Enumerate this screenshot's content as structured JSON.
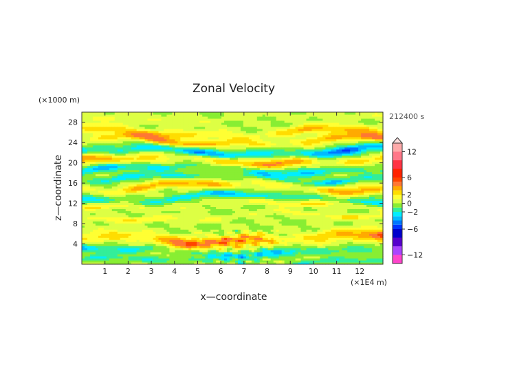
{
  "chart_data": {
    "type": "heatmap",
    "title": "Zonal Velocity",
    "xlabel": "x—coordinate",
    "ylabel": "z—coordinate",
    "x_unit": "(×1E4 m)",
    "y_unit": "(×1000 m)",
    "time_label": "212400 s",
    "x_range": [
      0,
      13
    ],
    "y_range": [
      0,
      30
    ],
    "x_ticks": [
      "1",
      "2",
      "3",
      "4",
      "5",
      "6",
      "7",
      "8",
      "9",
      "10",
      "11",
      "12"
    ],
    "y_ticks": [
      "4",
      "8",
      "12",
      "16",
      "20",
      "24",
      "28"
    ],
    "grid": false,
    "colorbar": {
      "tick_labels": [
        "12",
        "6",
        "2",
        "0",
        "−2",
        "−6",
        "−12"
      ],
      "levels": [
        -14,
        -12,
        -10,
        -8,
        -6,
        -5,
        -4,
        -3,
        -2,
        -1,
        0,
        1,
        2,
        3,
        4,
        5,
        6,
        8,
        10,
        12,
        14
      ],
      "colors": [
        "#ff44cc",
        "#aa44ff",
        "#5500cc",
        "#0000cc",
        "#0033ff",
        "#0077ff",
        "#00bbff",
        "#00eeff",
        "#33ee99",
        "#88ee33",
        "#ddff44",
        "#ffff33",
        "#ffdd00",
        "#ffaa00",
        "#ff7733",
        "#ff4400",
        "#ff2200",
        "#ff3344",
        "#ff7788",
        "#ffaaaa"
      ]
    },
    "bands": [
      {
        "z": 29.0,
        "amp": 0.8,
        "width": 1.0,
        "wave": 0.5
      },
      {
        "z": 26.0,
        "amp": 3.0,
        "width": 0.9,
        "wave": 1.0
      },
      {
        "z": 24.3,
        "amp": 3.5,
        "width": 0.8,
        "wave": 1.0
      },
      {
        "z": 22.3,
        "amp": -4.2,
        "width": 0.9,
        "wave": 1.2
      },
      {
        "z": 20.6,
        "amp": 3.8,
        "width": 0.9,
        "wave": 1.0
      },
      {
        "z": 18.8,
        "amp": -2.6,
        "width": 0.8,
        "wave": 1.0
      },
      {
        "z": 17.0,
        "amp": -2.4,
        "width": 0.7,
        "wave": 1.0
      },
      {
        "z": 15.4,
        "amp": 3.2,
        "width": 0.9,
        "wave": 1.0
      },
      {
        "z": 13.2,
        "amp": -2.8,
        "width": 0.8,
        "wave": 1.0
      },
      {
        "z": 11.8,
        "amp": 1.8,
        "width": 0.6,
        "wave": 0.8
      },
      {
        "z": 9.4,
        "amp": 1.6,
        "width": 0.6,
        "wave": 0.8
      },
      {
        "z": 5.0,
        "amp": 4.5,
        "width": 1.2,
        "wave": 1.0
      },
      {
        "z": 2.6,
        "amp": -2.8,
        "width": 0.8,
        "wave": 1.0
      },
      {
        "z": 0.6,
        "amp": -1.6,
        "width": 0.6,
        "wave": 0.8
      }
    ]
  }
}
